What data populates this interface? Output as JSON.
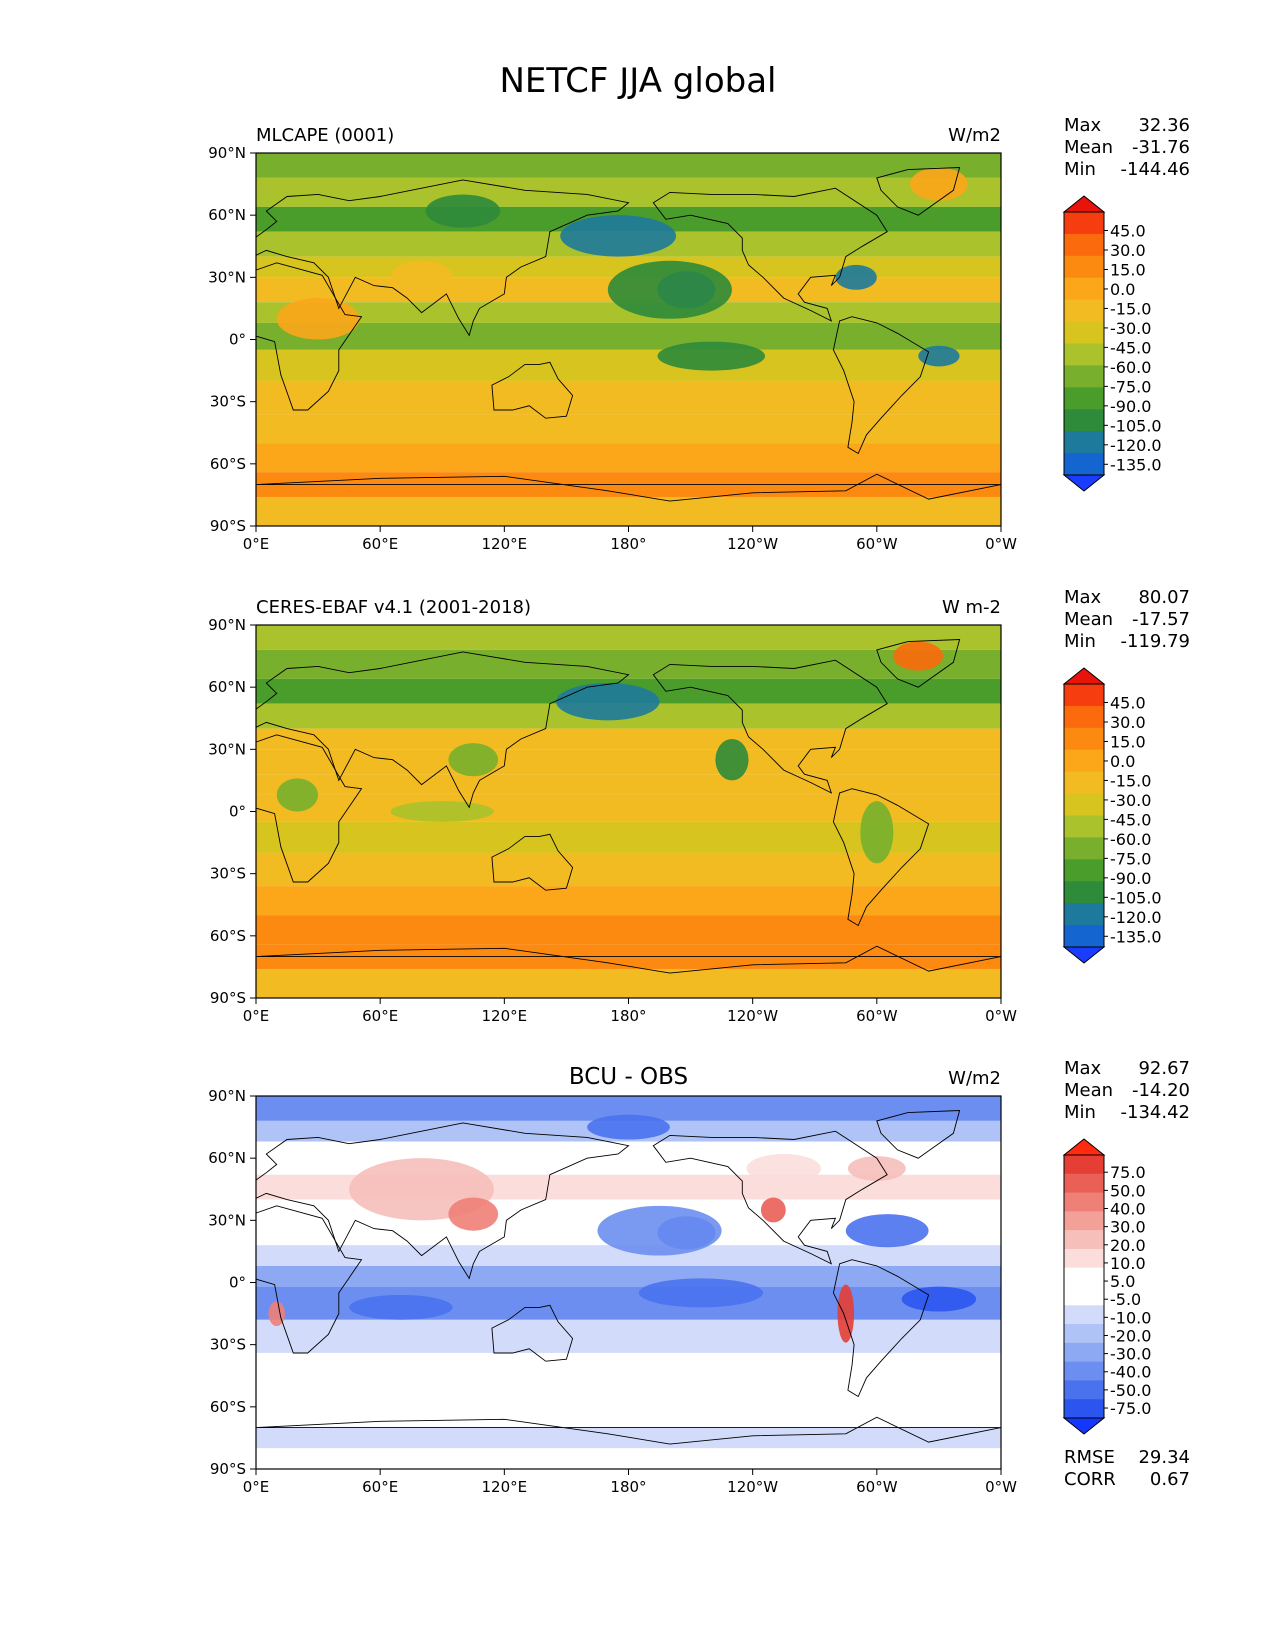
{
  "figure": {
    "title": "NETCF JJA global"
  },
  "colors": {
    "model_obs_scale": [
      "#1a3cff",
      "#1565d0",
      "#1e7a9c",
      "#2e8b3a",
      "#4a9d2a",
      "#78b02e",
      "#aac22b",
      "#d8c41e",
      "#f3bb22",
      "#fca619",
      "#fd8a10",
      "#fb6a0c",
      "#f53d10",
      "#e8140c"
    ],
    "diff_scale": [
      "#1437ff",
      "#2c55f0",
      "#4a72ee",
      "#6b8ef0",
      "#8da9f3",
      "#afc3f6",
      "#d2dcfa",
      "#ffffff",
      "#ffffff",
      "#fbdedb",
      "#f6bfba",
      "#f2a098",
      "#ee8077",
      "#ea5f56",
      "#e63e35",
      "#ff2a10"
    ],
    "ocean_text": "#000000"
  },
  "chart_data": [
    {
      "type": "heatmap",
      "panel": "model",
      "left_title": "MLCAPE (0001)",
      "center_title": "",
      "units": "W/m2",
      "stats": [
        {
          "label": "Max",
          "value": "32.36"
        },
        {
          "label": "Mean",
          "value": "-31.76"
        },
        {
          "label": "Min",
          "value": "-144.46"
        }
      ],
      "extra_stats": [],
      "x_ticks": [
        "0°E",
        "60°E",
        "120°E",
        "180°",
        "120°W",
        "60°W",
        "0°W"
      ],
      "y_ticks": [
        "90°N",
        "60°N",
        "30°N",
        "0°",
        "30°S",
        "60°S",
        "90°S"
      ],
      "colorbar_levels": [
        "45.0",
        "30.0",
        "15.0",
        "0.0",
        "-15.0",
        "-30.0",
        "-45.0",
        "-60.0",
        "-75.0",
        "-90.0",
        "-105.0",
        "-120.0",
        "-135.0"
      ],
      "colorbar_extend": "both",
      "xlim": [
        0,
        360
      ],
      "ylim": [
        -90,
        90
      ]
    },
    {
      "type": "heatmap",
      "panel": "obs",
      "left_title": "CERES-EBAF v4.1 (2001-2018)",
      "center_title": "",
      "units": "W m-2",
      "stats": [
        {
          "label": "Max",
          "value": "80.07"
        },
        {
          "label": "Mean",
          "value": "-17.57"
        },
        {
          "label": "Min",
          "value": "-119.79"
        }
      ],
      "extra_stats": [],
      "x_ticks": [
        "0°E",
        "60°E",
        "120°E",
        "180°",
        "120°W",
        "60°W",
        "0°W"
      ],
      "y_ticks": [
        "90°N",
        "60°N",
        "30°N",
        "0°",
        "30°S",
        "60°S",
        "90°S"
      ],
      "colorbar_levels": [
        "45.0",
        "30.0",
        "15.0",
        "0.0",
        "-15.0",
        "-30.0",
        "-45.0",
        "-60.0",
        "-75.0",
        "-90.0",
        "-105.0",
        "-120.0",
        "-135.0"
      ],
      "colorbar_extend": "both",
      "xlim": [
        0,
        360
      ],
      "ylim": [
        -90,
        90
      ]
    },
    {
      "type": "heatmap",
      "panel": "diff",
      "left_title": "",
      "center_title": "BCU - OBS",
      "units": "W/m2",
      "stats": [
        {
          "label": "Max",
          "value": "92.67"
        },
        {
          "label": "Mean",
          "value": "-14.20"
        },
        {
          "label": "Min",
          "value": "-134.42"
        }
      ],
      "extra_stats": [
        {
          "label": "RMSE",
          "value": "29.34"
        },
        {
          "label": "CORR",
          "value": "0.67"
        }
      ],
      "x_ticks": [
        "0°E",
        "60°E",
        "120°E",
        "180°",
        "120°W",
        "60°W",
        "0°W"
      ],
      "y_ticks": [
        "90°N",
        "60°N",
        "30°N",
        "0°",
        "30°S",
        "60°S",
        "90°S"
      ],
      "colorbar_levels": [
        "75.0",
        "50.0",
        "40.0",
        "30.0",
        "20.0",
        "10.0",
        "5.0",
        "-5.0",
        "-10.0",
        "-20.0",
        "-30.0",
        "-40.0",
        "-50.0",
        "-75.0"
      ],
      "colorbar_extend": "both",
      "xlim": [
        0,
        360
      ],
      "ylim": [
        -90,
        90
      ]
    }
  ]
}
